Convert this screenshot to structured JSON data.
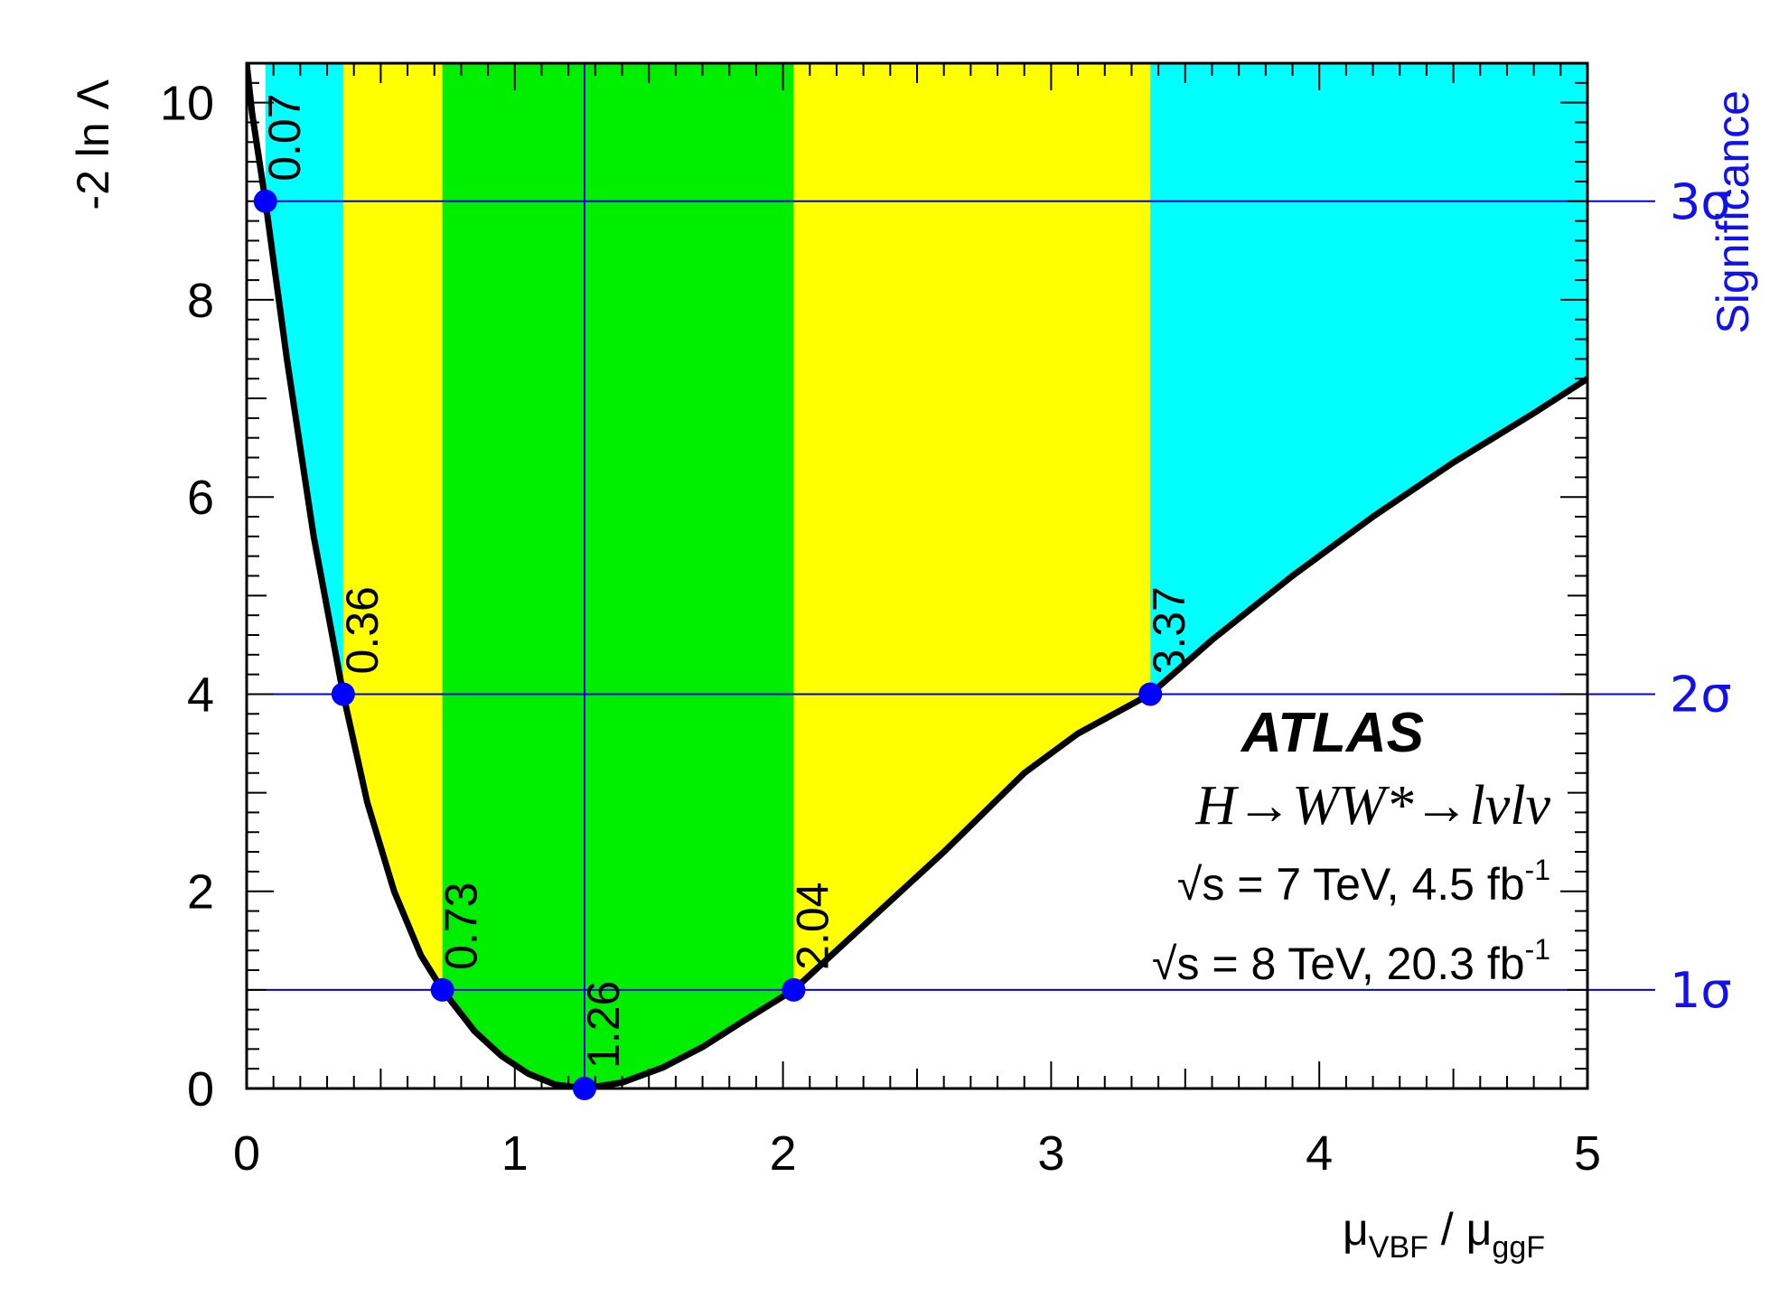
{
  "chart_data": {
    "type": "line",
    "xlabel": {
      "mu": "μ",
      "num_sub": "VBF",
      "sep": " / ",
      "den_sub": "ggF"
    },
    "ylabel": "-2 ln Λ",
    "right_axis_title": "Significance",
    "xlim": [
      0,
      5
    ],
    "ylim": [
      0,
      10.4
    ],
    "x_ticks": [
      "0",
      "1",
      "2",
      "3",
      "4",
      "5"
    ],
    "y_ticks": [
      "0",
      "2",
      "4",
      "6",
      "8",
      "10"
    ],
    "significance_levels": [
      {
        "label": "1σ",
        "y": 1
      },
      {
        "label": "2σ",
        "y": 4
      },
      {
        "label": "3σ",
        "y": 9
      }
    ],
    "best_fit": {
      "x": 1.26,
      "label": "1.26"
    },
    "crossings": [
      {
        "x": 0.07,
        "y": 9,
        "label": "0.07"
      },
      {
        "x": 0.36,
        "y": 4,
        "label": "0.36"
      },
      {
        "x": 0.73,
        "y": 1,
        "label": "0.73"
      },
      {
        "x": 2.04,
        "y": 1,
        "label": "2.04"
      },
      {
        "x": 3.37,
        "y": 4,
        "label": "3.37"
      }
    ],
    "bands": [
      {
        "name": "1σ interval",
        "from": 0.73,
        "to": 2.04,
        "color": "#00ee00"
      },
      {
        "name": "2σ interval",
        "from": 0.36,
        "to": 3.37,
        "color": "#ffff00"
      },
      {
        "name": "3σ interval",
        "from": 0.07,
        "to": 5.0,
        "color": "#00ffff"
      }
    ],
    "curve": {
      "x": [
        0.0,
        0.02,
        0.07,
        0.15,
        0.25,
        0.36,
        0.45,
        0.55,
        0.65,
        0.73,
        0.85,
        0.95,
        1.05,
        1.15,
        1.26,
        1.4,
        1.55,
        1.7,
        1.85,
        2.04,
        2.3,
        2.6,
        2.9,
        3.1,
        3.37,
        3.6,
        3.9,
        4.2,
        4.5,
        4.8,
        5.0
      ],
      "y": [
        10.4,
        9.9,
        9.0,
        7.4,
        5.6,
        4.0,
        2.9,
        2.0,
        1.35,
        1.0,
        0.58,
        0.33,
        0.15,
        0.04,
        0.0,
        0.06,
        0.21,
        0.42,
        0.68,
        1.0,
        1.65,
        2.4,
        3.2,
        3.6,
        4.0,
        4.55,
        5.2,
        5.8,
        6.35,
        6.85,
        7.2
      ]
    },
    "colors": {
      "curve": "#000000",
      "marker": "#0000ff",
      "guide": "#0000ee",
      "sigma_text": "#1111ee"
    }
  },
  "annotations": {
    "experiment": "ATLAS",
    "process": "H→WW*→lνlν",
    "lumi_7": {
      "sqrt": "√",
      "text": "s = 7 TeV, 4.5 fb",
      "sup": "-1"
    },
    "lumi_8": {
      "sqrt": "√",
      "text": "s = 8 TeV, 20.3 fb",
      "sup": "-1"
    }
  }
}
